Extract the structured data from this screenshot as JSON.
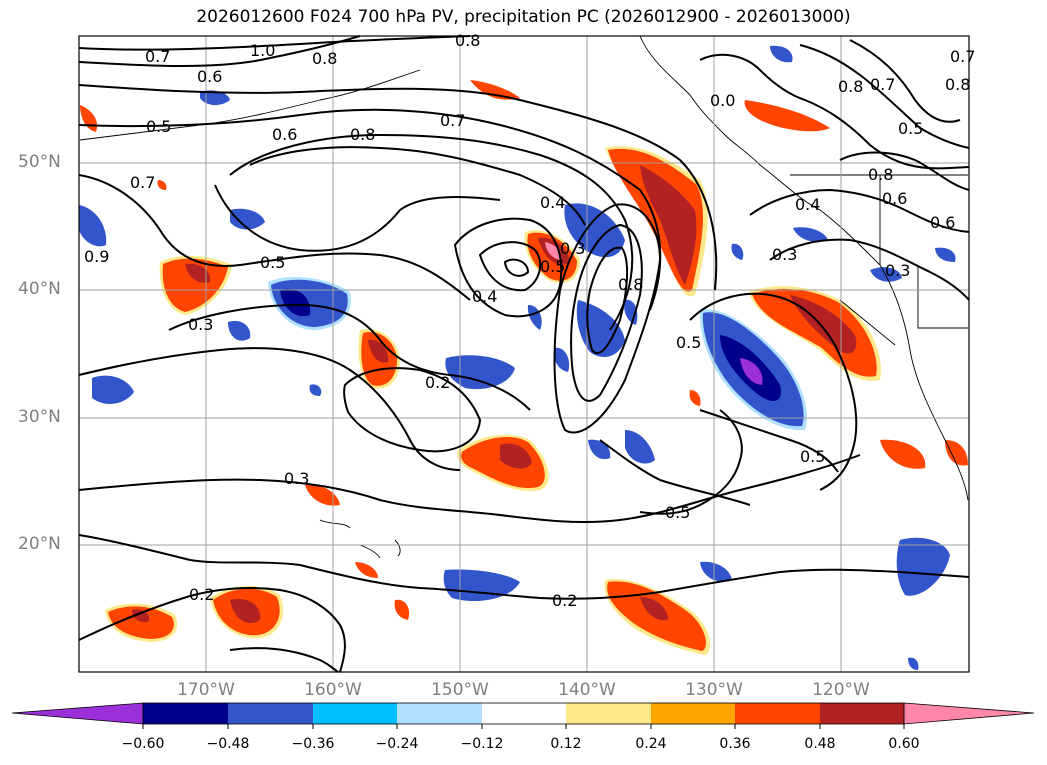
{
  "title": "2026012600 F024 700 hPa PV, precipitation PC (2026012900 - 2026013000)",
  "map": {
    "lat_labels": [
      "50°N",
      "40°N",
      "30°N",
      "20°N"
    ],
    "lon_labels": [
      "170°W",
      "160°W",
      "150°W",
      "140°W",
      "130°W",
      "120°W"
    ],
    "grid": true,
    "contour_color": "#000000",
    "contour_labels": [
      "1.0",
      "0.8",
      "0.7",
      "0.6",
      "0.5",
      "0.4",
      "0.3",
      "0.2"
    ],
    "contour_label_instances": [
      "0.7",
      "1.0",
      "0.8",
      "0.8",
      "0.6",
      "0.5",
      "0.6",
      "0.8",
      "0.7",
      "0.7",
      "0.5",
      "0.4",
      "0.3",
      "0.5",
      "0.4",
      "0.8",
      "0.3",
      "0.2",
      "0.3",
      "0.2",
      "0.2",
      "0.5",
      "0.5",
      "0.8",
      "0.7",
      "0.5",
      "0.8",
      "0.6",
      "0.4",
      "0.3",
      "0.3",
      "0.9",
      "0.6",
      "0.7",
      "0.0",
      "0.5",
      "0.8"
    ]
  },
  "colorbar": {
    "ticks": [
      "−0.60",
      "−0.48",
      "−0.36",
      "−0.24",
      "−0.12",
      "0.12",
      "0.24",
      "0.36",
      "0.48",
      "0.60"
    ],
    "colors": [
      "#9b30d9",
      "#00008b",
      "#3355cc",
      "#00bfff",
      "#b0e0ff",
      "#ffffff",
      "#ffe88a",
      "#ffa500",
      "#ff4500",
      "#b22222",
      "#ff88aa"
    ]
  }
}
